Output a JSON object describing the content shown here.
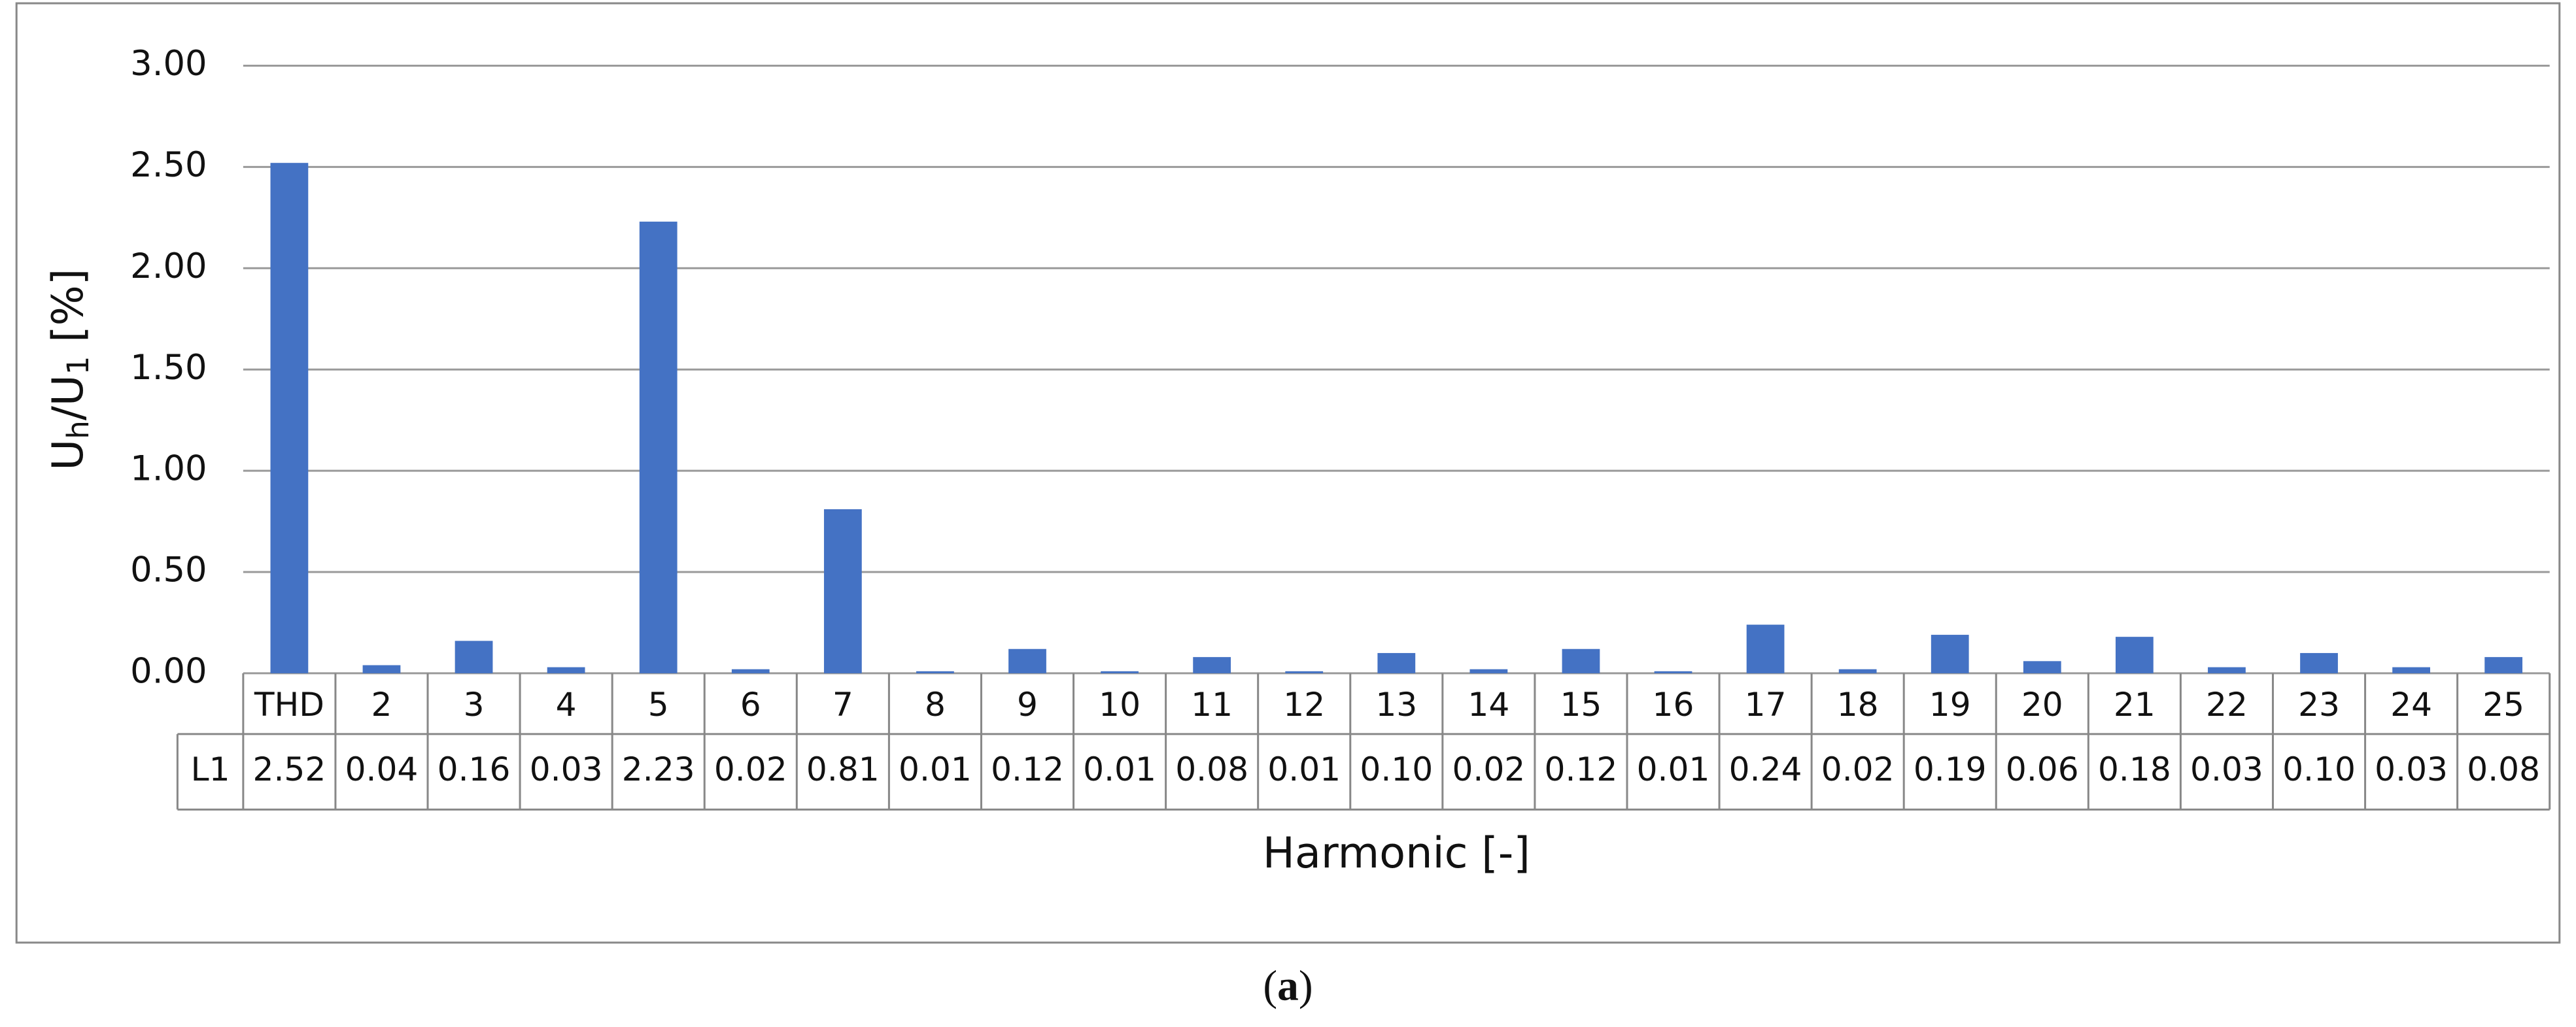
{
  "chart_data": {
    "type": "bar",
    "y_label": [
      "U",
      "h",
      "/U",
      "1",
      " [%]"
    ],
    "x_label": "Harmonic [-]",
    "caption": [
      "(",
      "a",
      ")"
    ],
    "categories": [
      "THD",
      "2",
      "3",
      "4",
      "5",
      "6",
      "7",
      "8",
      "9",
      "10",
      "11",
      "12",
      "13",
      "14",
      "15",
      "16",
      "17",
      "18",
      "19",
      "20",
      "21",
      "22",
      "23",
      "24",
      "25"
    ],
    "series": [
      {
        "name": "L1",
        "color": "#4472c4",
        "values": [
          2.52,
          0.04,
          0.16,
          0.03,
          2.23,
          0.02,
          0.81,
          0.01,
          0.12,
          0.01,
          0.08,
          0.01,
          0.1,
          0.02,
          0.12,
          0.01,
          0.24,
          0.02,
          0.19,
          0.06,
          0.18,
          0.03,
          0.1,
          0.03,
          0.08
        ],
        "value_labels": [
          "2.52",
          "0.04",
          "0.16",
          "0.03",
          "2.23",
          "0.02",
          "0.81",
          "0.01",
          "0.12",
          "0.01",
          "0.08",
          "0.01",
          "0.10",
          "0.02",
          "0.12",
          "0.01",
          "0.24",
          "0.02",
          "0.19",
          "0.06",
          "0.18",
          "0.03",
          "0.10",
          "0.03",
          "0.08"
        ]
      }
    ],
    "ylim": [
      0,
      3
    ],
    "yticks": [
      {
        "value": 0,
        "label": "0.00"
      },
      {
        "value": 0.5,
        "label": "0.50"
      },
      {
        "value": 1,
        "label": "1.00"
      },
      {
        "value": 1.5,
        "label": "1.50"
      },
      {
        "value": 2,
        "label": "2.00"
      },
      {
        "value": 2.5,
        "label": "2.50"
      },
      {
        "value": 3,
        "label": "3.00"
      }
    ],
    "grid": true,
    "data_table": true
  }
}
